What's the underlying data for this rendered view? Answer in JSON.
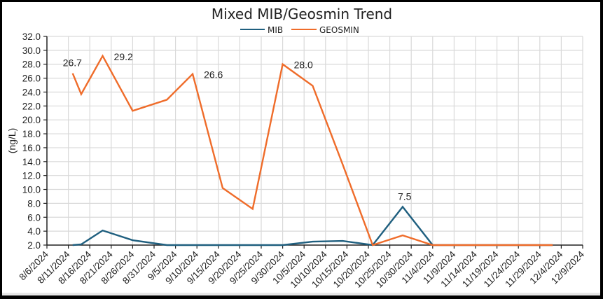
{
  "chart_data": {
    "type": "line",
    "title": "Mixed MIB/Geosmin Trend",
    "xlabel": "",
    "ylabel": "(ng/L)",
    "ylim": [
      2.0,
      32.0
    ],
    "y_ticks": [
      "2.0",
      "4.0",
      "6.0",
      "8.0",
      "10.0",
      "12.0",
      "14.0",
      "16.0",
      "18.0",
      "20.0",
      "22.0",
      "24.0",
      "26.0",
      "28.0",
      "30.0",
      "32.0"
    ],
    "x_tick_labels": [
      "8/6/2024",
      "8/11/2024",
      "8/16/2024",
      "8/21/2024",
      "8/26/2024",
      "8/31/2024",
      "9/5/2024",
      "9/10/2024",
      "9/15/2024",
      "9/20/2024",
      "9/25/2024",
      "9/30/2024",
      "10/5/2024",
      "10/10/2024",
      "10/15/2024",
      "10/20/2024",
      "10/25/2024",
      "10/30/2024",
      "11/4/2024",
      "11/9/2024",
      "11/14/2024",
      "11/19/2024",
      "11/24/2024",
      "11/29/2024",
      "12/4/2024",
      "12/9/2024"
    ],
    "grid": true,
    "legend_position": "top",
    "x": [
      "8/12/2024",
      "8/14/2024",
      "8/19/2024",
      "8/26/2024",
      "9/3/2024",
      "9/9/2024",
      "9/16/2024",
      "9/23/2024",
      "9/30/2024",
      "10/7/2024",
      "10/14/2024",
      "10/21/2024",
      "10/28/2024",
      "11/4/2024",
      "11/11/2024",
      "11/18/2024",
      "11/25/2024",
      "12/2/2024"
    ],
    "series": [
      {
        "name": "MIB",
        "color": "#1f5f7f",
        "values": [
          2.0,
          2.1,
          4.1,
          2.7,
          2.0,
          2.0,
          2.0,
          2.0,
          2.0,
          2.5,
          2.6,
          2.0,
          7.5,
          2.0,
          2.0,
          2.0,
          2.0,
          2.0
        ]
      },
      {
        "name": "GEOSMIN",
        "color": "#ef6c2a",
        "values": [
          26.7,
          23.7,
          29.2,
          21.3,
          22.9,
          26.6,
          10.2,
          7.2,
          28.0,
          24.9,
          13.6,
          2.0,
          3.4,
          2.0,
          2.0,
          2.0,
          2.0,
          2.0
        ]
      }
    ],
    "annotations": [
      {
        "text": "26.7",
        "series": "GEOSMIN",
        "x": "8/12/2024"
      },
      {
        "text": "29.2",
        "series": "GEOSMIN",
        "x": "8/19/2024"
      },
      {
        "text": "26.6",
        "series": "GEOSMIN",
        "x": "9/9/2024"
      },
      {
        "text": "28.0",
        "series": "GEOSMIN",
        "x": "9/30/2024"
      },
      {
        "text": "7.5",
        "series": "MIB",
        "x": "10/28/2024"
      }
    ]
  },
  "legend": {
    "mib": "MIB",
    "geosmin": "GEOSMIN"
  }
}
